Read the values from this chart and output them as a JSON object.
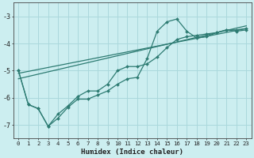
{
  "xlabel": "Humidex (Indice chaleur)",
  "background_color": "#cceef0",
  "grid_color": "#aad8dc",
  "line_color": "#2d7b72",
  "xlim": [
    -0.5,
    23.5
  ],
  "ylim": [
    -7.5,
    -2.5
  ],
  "yticks": [
    -7,
    -6,
    -5,
    -4,
    -3
  ],
  "xticks": [
    0,
    1,
    2,
    3,
    4,
    5,
    6,
    7,
    8,
    9,
    10,
    11,
    12,
    13,
    14,
    15,
    16,
    17,
    18,
    19,
    20,
    21,
    22,
    23
  ],
  "curve1_x": [
    0,
    1,
    2,
    3,
    4,
    5,
    6,
    7,
    8,
    9,
    10,
    11,
    12,
    13,
    14,
    15,
    16,
    17,
    18,
    19,
    20,
    21,
    22,
    23
  ],
  "curve1_y": [
    -5.0,
    -6.25,
    -6.4,
    -7.05,
    -6.75,
    -6.35,
    -6.05,
    -6.05,
    -5.9,
    -5.75,
    -5.5,
    -5.3,
    -5.25,
    -4.55,
    -3.55,
    -3.2,
    -3.1,
    -3.55,
    -3.8,
    -3.75,
    -3.6,
    -3.5,
    -3.55,
    -3.5
  ],
  "curve2_x": [
    0,
    1,
    2,
    3,
    4,
    5,
    6,
    7,
    8,
    9,
    10,
    11,
    12,
    13,
    14,
    15,
    16,
    17,
    18,
    19,
    20,
    21,
    22,
    23
  ],
  "curve2_y": [
    -5.0,
    -6.25,
    -6.4,
    -7.05,
    -6.6,
    -6.3,
    -5.95,
    -5.75,
    -5.75,
    -5.5,
    -5.0,
    -4.85,
    -4.85,
    -4.75,
    -4.5,
    -4.15,
    -3.85,
    -3.75,
    -3.7,
    -3.65,
    -3.6,
    -3.5,
    -3.5,
    -3.45
  ],
  "line1_x": [
    0,
    23
  ],
  "line1_y": [
    -5.1,
    -3.45
  ],
  "line2_x": [
    0,
    23
  ],
  "line2_y": [
    -5.3,
    -3.35
  ]
}
